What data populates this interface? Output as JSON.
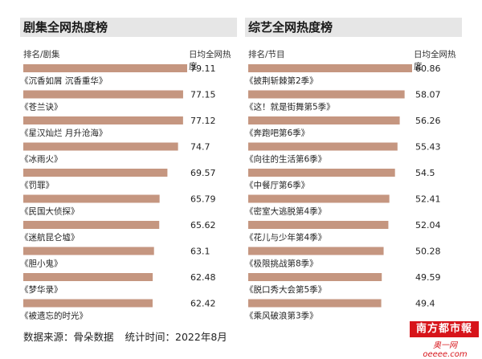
{
  "colors": {
    "bar": "#c59680",
    "title_bg": "#e6e6e6",
    "logo_red": "#d7141a"
  },
  "chart_data": [
    {
      "type": "bar",
      "orientation": "horizontal",
      "title": "剧集全网热度榜",
      "col_label_left": "排名/剧集",
      "col_label_right": "日均全网热度",
      "categories": [
        "《沉香如屑 沉香重华》",
        "《苍兰诀》",
        "《星汉灿烂 月升沧海》",
        "《冰雨火》",
        "《罚罪》",
        "《民国大侦探》",
        "《迷航昆仑墟》",
        "《胆小鬼》",
        "《梦华录》",
        "《被遗忘的时光》"
      ],
      "value_labels": [
        "79.11",
        "77.15",
        "77.12",
        "74.7",
        "69.57",
        "65.79",
        "65.62",
        "63.1",
        "62.48",
        "62.42"
      ],
      "values": [
        79.11,
        77.15,
        77.12,
        74.7,
        69.57,
        65.79,
        65.62,
        63.1,
        62.48,
        62.42
      ],
      "xlim": [
        0,
        79.11
      ]
    },
    {
      "type": "bar",
      "orientation": "horizontal",
      "title": "综艺全网热度榜",
      "col_label_left": "排名/节目",
      "col_label_right": "日均全网热度",
      "categories": [
        "《披荆斩棘第2季》",
        "《这！就是街舞第5季》",
        "《奔跑吧第6季》",
        "《向往的生活第6季》",
        "《中餐厅第6季》",
        "《密室大逃脱第4季》",
        "《花儿与少年第4季》",
        "《极限挑战第8季》",
        "《脱口秀大会第5季》",
        "《乘风破浪第3季》"
      ],
      "value_labels": [
        "60.86",
        "58.07",
        "56.26",
        "55.43",
        "54.5",
        "52.41",
        "52.04",
        "50.28",
        "49.59",
        "49.4"
      ],
      "values": [
        60.86,
        58.07,
        56.26,
        55.43,
        54.5,
        52.41,
        52.04,
        50.28,
        49.59,
        49.4
      ],
      "xlim": [
        0,
        60.86
      ]
    }
  ],
  "footer": {
    "source": "数据来源：骨朵数据",
    "time": "统计时间：2022年8月"
  },
  "logo": {
    "text": "南方都市報",
    "sub": "奥一网oeeee.com"
  }
}
